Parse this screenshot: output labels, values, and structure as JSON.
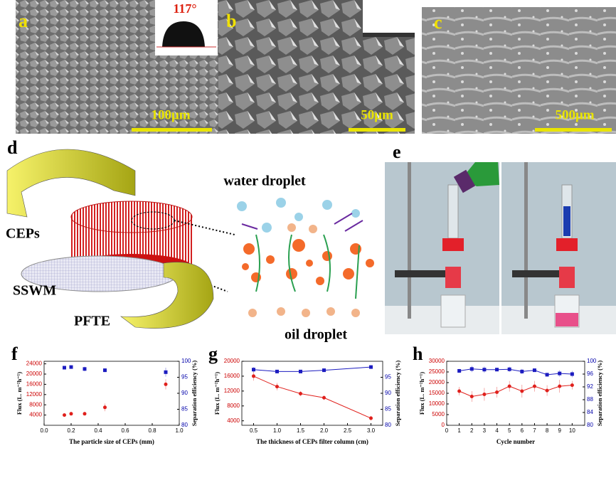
{
  "figure": {
    "panel_labels": {
      "a": "a",
      "b": "b",
      "c": "c",
      "d": "d",
      "e": "e",
      "f": "f",
      "g": "g",
      "h": "h"
    },
    "contact_angle": "117°",
    "scale_bars": [
      "100μm",
      "50μm",
      "500μm"
    ],
    "diagram": {
      "ceps": "CEPs",
      "sswm": "SSWM",
      "pfte": "PFTE",
      "water": "water droplet",
      "oil": "oil droplet"
    }
  },
  "chart_data": [
    {
      "type": "scatter",
      "xlabel": "The particle size of CEPs (mm)",
      "ylabel": "Flux (L. m⁻²h⁻¹)",
      "y2label": "Separation efficiency (%)",
      "x": [
        0.15,
        0.2,
        0.3,
        0.45,
        0.9
      ],
      "xlim": [
        0,
        1
      ],
      "xticks": [
        {
          "value": 0,
          "label": "0.0"
        },
        0.2,
        0.4,
        0.6,
        0.8,
        {
          "value": 1,
          "label": "1.0"
        }
      ],
      "ylim": [
        0,
        25000
      ],
      "yticks": [
        4000,
        8000,
        12000,
        16000,
        20000,
        24000
      ],
      "y2lim": [
        80,
        100
      ],
      "y2ticks": [
        80,
        85,
        90,
        95,
        100
      ],
      "series": [
        {
          "color": "#e0201c",
          "marker": "circle",
          "values": [
            4000,
            4500,
            4500,
            7000,
            16000
          ],
          "errors": [
            200,
            200,
            300,
            1500,
            2000
          ]
        },
        {
          "color": "#1c1cc0",
          "marker": "square",
          "axis": "y2",
          "values": [
            98,
            98.2,
            97.6,
            97.2,
            96.6
          ],
          "errors": [
            0.5,
            0.4,
            0.7,
            0.6,
            1.4
          ]
        }
      ]
    },
    {
      "type": "line",
      "xlabel": "The thickness of CEPs filter column (cm)",
      "ylabel": "Flux (L. m⁻²h⁻¹)",
      "y2label": "Separation efficiency (%)",
      "x": [
        0.5,
        1,
        1.5,
        2,
        3
      ],
      "xlim": [
        0.25,
        3.25
      ],
      "xticks": [
        0.5,
        {
          "value": 1,
          "label": "1.0"
        },
        1.5,
        {
          "value": 2,
          "label": "2.0"
        },
        2.5,
        {
          "value": 3,
          "label": "3.0"
        }
      ],
      "ylim": [
        2800,
        20000
      ],
      "yticks": [
        4000,
        8000,
        12000,
        16000,
        20000
      ],
      "y2lim": [
        80,
        100
      ],
      "y2ticks": [
        80,
        85,
        90,
        95
      ],
      "series": [
        {
          "color": "#e0201c",
          "marker": "circle",
          "values": [
            16000,
            13200,
            11300,
            10200,
            4700
          ],
          "errors": [
            1200,
            1000,
            700,
            600,
            600
          ]
        },
        {
          "color": "#1c1cc0",
          "marker": "square",
          "axis": "y2",
          "values": [
            97.4,
            96.8,
            96.8,
            97.2,
            98.2
          ],
          "errors": [
            0.8,
            0.3,
            0.5,
            0.4,
            0.2
          ]
        }
      ]
    },
    {
      "type": "line",
      "xlabel": "Cycle number",
      "ylabel": "Flux (L. m⁻²h⁻¹)",
      "y2label": "Separation efficiency (%)",
      "x": [
        1,
        2,
        3,
        4,
        5,
        6,
        7,
        8,
        9,
        10
      ],
      "xlim": [
        0,
        11
      ],
      "xticks": [
        0,
        1,
        2,
        3,
        4,
        5,
        6,
        7,
        8,
        9,
        10
      ],
      "ylim": [
        0,
        30000
      ],
      "yticks": [
        0,
        5000,
        10000,
        15000,
        20000,
        25000,
        30000
      ],
      "y2lim": [
        80,
        100
      ],
      "y2ticks": [
        80,
        84,
        88,
        92,
        96,
        100
      ],
      "series": [
        {
          "color": "#e0201c",
          "marker": "circle",
          "values": [
            16000,
            13500,
            14500,
            15500,
            18300,
            16000,
            18300,
            16300,
            18300,
            18800
          ],
          "errors": [
            2000,
            2500,
            3000,
            2500,
            2500,
            3000,
            2500,
            2500,
            3000,
            2000
          ]
        },
        {
          "color": "#1c1cc0",
          "marker": "square",
          "axis": "y2",
          "values": [
            97,
            97.6,
            97.4,
            97.4,
            97.5,
            96.8,
            97.2,
            95.8,
            96.2,
            96
          ],
          "errors": [
            0.6,
            1,
            1,
            0.4,
            0.8,
            0.8,
            0.4,
            0.6,
            1,
            1
          ]
        }
      ]
    }
  ]
}
